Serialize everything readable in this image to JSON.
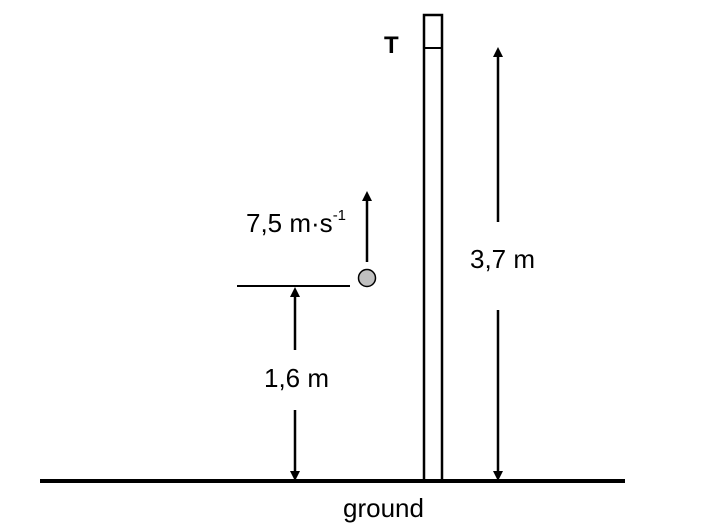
{
  "diagram": {
    "tower_label": "T",
    "velocity_value": "7,5 m·s",
    "velocity_exponent": "-1",
    "ball_height_label": "1,6 m",
    "tower_height_label": "3,7 m",
    "ground_label": "ground"
  },
  "colors": {
    "line": "#000000",
    "ball_fill": "#c0c0c0",
    "background": "#ffffff"
  }
}
